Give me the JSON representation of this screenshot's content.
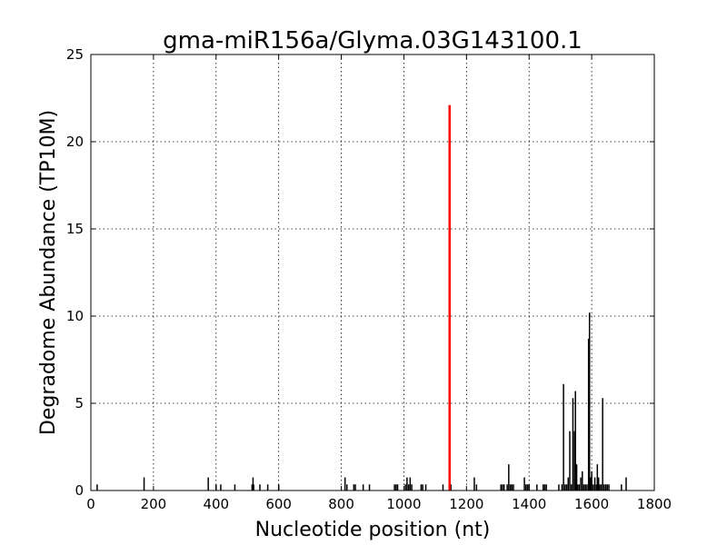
{
  "chart_data": {
    "type": "bar",
    "title": "gma-miR156a/Glyma.03G143100.1",
    "xlabel": "Nucleotide position (nt)",
    "ylabel": "Degradome Abundance (TP10M)",
    "xlim": [
      0,
      1800
    ],
    "ylim": [
      0,
      25
    ],
    "xticks": [
      "0",
      "200",
      "400",
      "600",
      "800",
      "1000",
      "1200",
      "1400",
      "1600",
      "1800"
    ],
    "yticks": [
      "0",
      "5",
      "10",
      "15",
      "20",
      "25"
    ],
    "grid": true,
    "colors": {
      "background": "#ffffff",
      "bars": "#000000",
      "highlight": "#ff0000"
    },
    "series": [
      {
        "points": [
          [
            20,
            0.35
          ],
          [
            170,
            0.75
          ],
          [
            375,
            0.75
          ],
          [
            400,
            0.35
          ],
          [
            415,
            0.35
          ],
          [
            460,
            0.35
          ],
          [
            515,
            0.35
          ],
          [
            518,
            0.75
          ],
          [
            520,
            0.35
          ],
          [
            540,
            0.35
          ],
          [
            565,
            0.35
          ],
          [
            600,
            0.35
          ],
          [
            812,
            0.75
          ],
          [
            818,
            0.35
          ],
          [
            840,
            0.35
          ],
          [
            845,
            0.35
          ],
          [
            870,
            0.35
          ],
          [
            890,
            0.35
          ],
          [
            970,
            0.35
          ],
          [
            975,
            0.35
          ],
          [
            980,
            0.35
          ],
          [
            1005,
            0.35
          ],
          [
            1010,
            0.75
          ],
          [
            1015,
            0.35
          ],
          [
            1020,
            0.75
          ],
          [
            1025,
            0.35
          ],
          [
            1055,
            0.35
          ],
          [
            1060,
            0.35
          ],
          [
            1070,
            0.35
          ],
          [
            1125,
            0.35
          ],
          [
            1145,
            6.1
          ],
          [
            1150,
            0.35
          ],
          [
            1225,
            0.75
          ],
          [
            1232,
            0.35
          ],
          [
            1310,
            0.35
          ],
          [
            1315,
            0.35
          ],
          [
            1320,
            0.35
          ],
          [
            1330,
            0.35
          ],
          [
            1335,
            1.5
          ],
          [
            1340,
            0.35
          ],
          [
            1345,
            0.35
          ],
          [
            1350,
            0.35
          ],
          [
            1385,
            0.75
          ],
          [
            1390,
            0.35
          ],
          [
            1395,
            0.35
          ],
          [
            1400,
            0.35
          ],
          [
            1425,
            0.35
          ],
          [
            1445,
            0.35
          ],
          [
            1450,
            0.35
          ],
          [
            1455,
            0.35
          ],
          [
            1495,
            0.35
          ],
          [
            1505,
            0.35
          ],
          [
            1510,
            6.1
          ],
          [
            1515,
            0.35
          ],
          [
            1520,
            0.35
          ],
          [
            1525,
            0.75
          ],
          [
            1530,
            3.4
          ],
          [
            1535,
            0.35
          ],
          [
            1540,
            5.3
          ],
          [
            1545,
            3.4
          ],
          [
            1548,
            5.7
          ],
          [
            1552,
            1.5
          ],
          [
            1555,
            0.35
          ],
          [
            1560,
            0.35
          ],
          [
            1565,
            0.75
          ],
          [
            1570,
            1.1
          ],
          [
            1575,
            0.35
          ],
          [
            1580,
            0.35
          ],
          [
            1585,
            0.35
          ],
          [
            1590,
            8.7
          ],
          [
            1593,
            10.2
          ],
          [
            1596,
            0.75
          ],
          [
            1600,
            1.1
          ],
          [
            1605,
            0.35
          ],
          [
            1610,
            0.75
          ],
          [
            1615,
            0.35
          ],
          [
            1618,
            1.5
          ],
          [
            1622,
            0.75
          ],
          [
            1625,
            0.35
          ],
          [
            1630,
            0.35
          ],
          [
            1635,
            5.3
          ],
          [
            1640,
            0.35
          ],
          [
            1645,
            0.35
          ],
          [
            1650,
            0.35
          ],
          [
            1655,
            0.35
          ],
          [
            1695,
            0.35
          ],
          [
            1710,
            0.75
          ]
        ]
      },
      {
        "highlight": true,
        "points": [
          [
            1146,
            22.1
          ]
        ]
      }
    ]
  }
}
